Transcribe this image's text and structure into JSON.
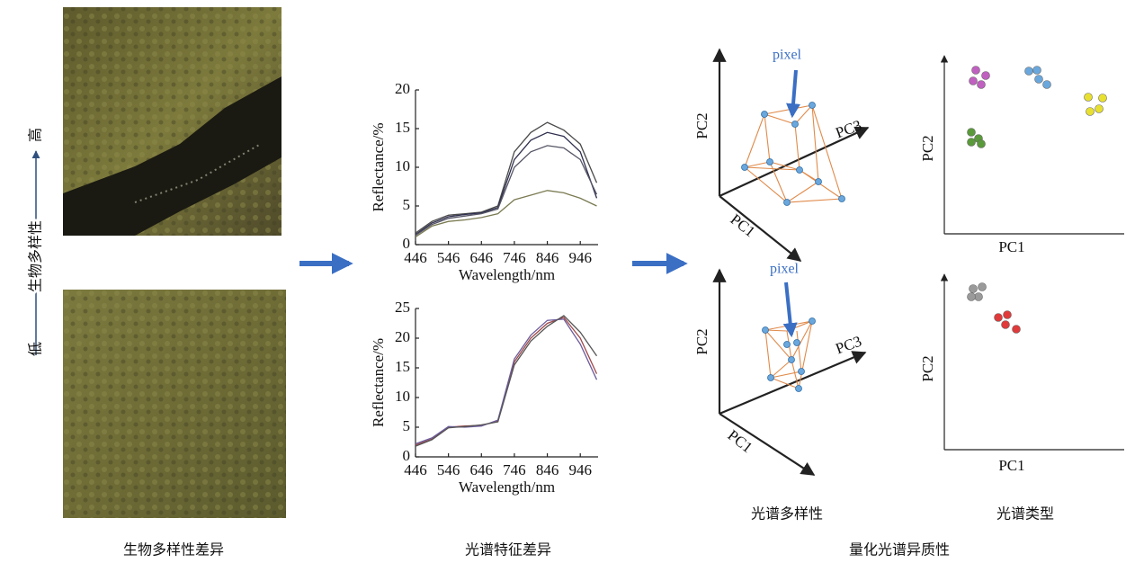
{
  "left": {
    "high": "高",
    "axis_label": "生物多样性",
    "low": "低",
    "caption": "生物多样性差异"
  },
  "spectra": {
    "caption": "光谱特征差异",
    "charts": [
      {
        "type": "line",
        "ylabel": "Reflectance/%",
        "xlabel": "Wavelength/nm",
        "xlim": [
          446,
          1000
        ],
        "ylim": [
          0,
          20
        ],
        "xticks": [
          446,
          546,
          646,
          746,
          846,
          946
        ],
        "yticks": [
          0,
          5,
          10,
          15,
          20
        ],
        "x": [
          446,
          496,
          546,
          596,
          646,
          696,
          746,
          796,
          846,
          896,
          946,
          996
        ],
        "series": [
          {
            "color": "#4a4a4a",
            "values": [
              1.5,
              3,
              3.8,
              4,
              4.2,
              5,
              12,
              14.5,
              15.8,
              14.8,
              13,
              8
            ]
          },
          {
            "color": "#2f2f4f",
            "values": [
              1.3,
              2.8,
              3.6,
              3.9,
              4.1,
              4.8,
              11,
              13.5,
              14.5,
              14,
              12,
              6
            ]
          },
          {
            "color": "#555566",
            "values": [
              1.2,
              2.6,
              3.4,
              3.7,
              4,
              4.6,
              10,
              12,
              12.8,
              12.5,
              11,
              6.5
            ]
          },
          {
            "color": "#7a7a52",
            "values": [
              1,
              2.4,
              3,
              3.2,
              3.5,
              4,
              5.8,
              6.4,
              7,
              6.7,
              6,
              5
            ]
          }
        ]
      },
      {
        "type": "line",
        "ylabel": "Reflectance/%",
        "xlabel": "Wavelength/nm",
        "xlim": [
          446,
          1000
        ],
        "ylim": [
          0,
          25
        ],
        "xticks": [
          446,
          546,
          646,
          746,
          846,
          946
        ],
        "yticks": [
          0,
          5,
          10,
          15,
          20,
          25
        ],
        "x": [
          446,
          496,
          546,
          596,
          646,
          696,
          746,
          796,
          846,
          896,
          946,
          996
        ],
        "series": [
          {
            "color": "#a04848",
            "values": [
              2,
              3,
              5,
              5.2,
              5.3,
              6,
              16,
              20,
              22.5,
              23.5,
              20,
              14
            ]
          },
          {
            "color": "#6c5c9c",
            "values": [
              2.2,
              3.2,
              5.1,
              5,
              5.2,
              6.2,
              16.5,
              20.5,
              23,
              23.2,
              19,
              13
            ]
          },
          {
            "color": "#555555",
            "values": [
              1.8,
              2.9,
              4.9,
              5.1,
              5.4,
              5.9,
              15.5,
              19.5,
              22,
              23.8,
              21,
              17
            ]
          }
        ]
      }
    ]
  },
  "quantify": {
    "caption": "量化光谱异质性",
    "diversity": {
      "caption": "光谱多样性",
      "panels": [
        {
          "pixel": "pixel",
          "pc1": "PC1",
          "pc2": "PC2",
          "pc3": "PC3"
        },
        {
          "pixel": "pixel",
          "pc1": "PC1",
          "pc2": "PC2",
          "pc3": "PC3"
        }
      ]
    },
    "types": {
      "caption": "光谱类型",
      "panels": [
        {
          "pc1": "PC1",
          "pc2": "PC2"
        },
        {
          "pc1": "PC1",
          "pc2": "PC2"
        }
      ]
    }
  }
}
